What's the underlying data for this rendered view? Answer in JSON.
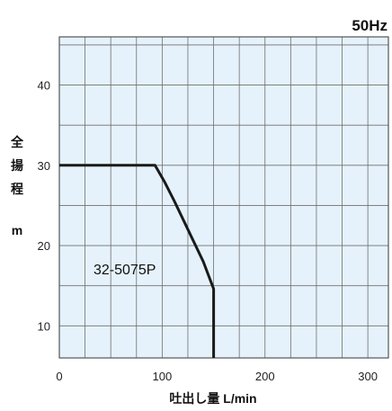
{
  "chart_data": {
    "type": "line",
    "title": "50Hz",
    "xlabel": "吐出し量 L/min",
    "ylabel_chars": [
      "全",
      "揚",
      "程"
    ],
    "ylabel_unit": "m",
    "xlim": [
      0,
      320
    ],
    "ylim": [
      6,
      46
    ],
    "x_grid": [
      0,
      25,
      50,
      75,
      100,
      125,
      150,
      175,
      200,
      225,
      250,
      275,
      300,
      320
    ],
    "y_grid": [
      6,
      10,
      15,
      20,
      25,
      30,
      35,
      40,
      45,
      46
    ],
    "x_tick_labels": [
      {
        "value": 0,
        "label": "0"
      },
      {
        "value": 100,
        "label": "100"
      },
      {
        "value": 200,
        "label": "200"
      },
      {
        "value": 300,
        "label": "300"
      }
    ],
    "y_tick_labels": [
      {
        "value": 10,
        "label": "10"
      },
      {
        "value": 20,
        "label": "20"
      },
      {
        "value": 30,
        "label": "30"
      },
      {
        "value": 40,
        "label": "40"
      }
    ],
    "series": [
      {
        "name": "32-5075P",
        "color": "#1a1a1a",
        "points": [
          [
            0,
            30
          ],
          [
            93,
            30
          ],
          [
            102,
            28
          ],
          [
            112,
            25.5
          ],
          [
            125,
            22
          ],
          [
            140,
            18
          ],
          [
            150,
            14.6
          ],
          [
            150,
            6
          ]
        ]
      }
    ],
    "plot_bg": "#e5f2fb",
    "grid_color": "#6f6f6f"
  }
}
